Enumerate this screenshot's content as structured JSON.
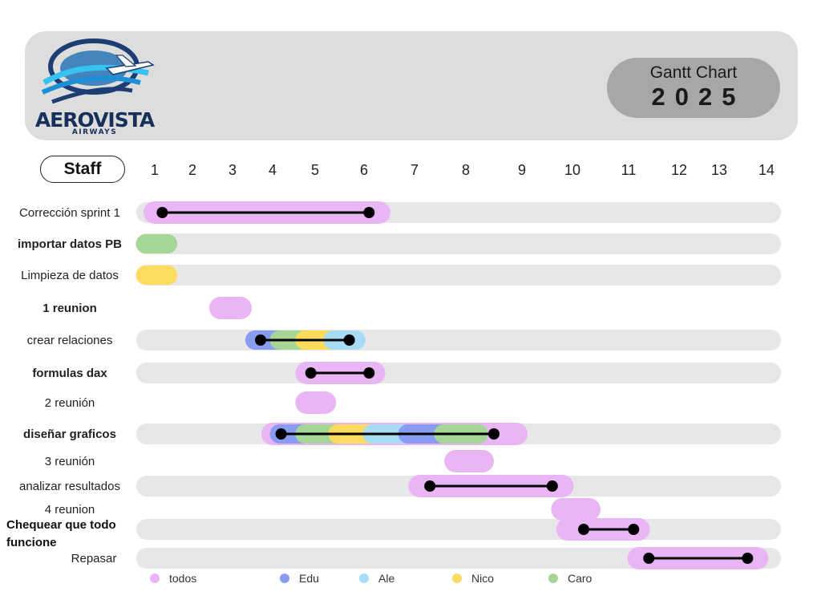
{
  "header": {
    "logo_name": "AEROVISTA",
    "logo_subtitle": "AIRWAYS",
    "title": "Gantt Chart",
    "year": "2025"
  },
  "staff_label": "Staff",
  "chart_data": {
    "type": "gantt",
    "columns": [
      "1",
      "2",
      "3",
      "4",
      "5",
      "6",
      "7",
      "8",
      "9",
      "10",
      "11",
      "12",
      "13",
      "14"
    ],
    "tasks": [
      {
        "name": "Corrección sprint 1",
        "bold": false,
        "segments": [
          {
            "start": 1,
            "end": 3.9,
            "who": "todos"
          },
          {
            "start": 3.9,
            "end": 6.3,
            "who": "todos"
          }
        ],
        "milestones": [
          1.2,
          6.1
        ]
      },
      {
        "name": "importar datos PB",
        "bold": true,
        "segments": [
          {
            "start": 0.8,
            "end": 1.3,
            "who": "Caro"
          }
        ],
        "milestones": []
      },
      {
        "name": "Limpieza de datos",
        "bold": false,
        "segments": [
          {
            "start": 0.8,
            "end": 1.3,
            "who": "Nico"
          }
        ],
        "milestones": []
      },
      {
        "name": "1 reunion",
        "bold": true,
        "segments": [
          {
            "start": 2.7,
            "end": 3.2,
            "who": "todos"
          }
        ],
        "milestones": []
      },
      {
        "name": "crear relaciones",
        "bold": false,
        "segments": [
          {
            "start": 3.6,
            "end": 4.2,
            "who": "Edu"
          },
          {
            "start": 4.2,
            "end": 4.8,
            "who": "Caro"
          },
          {
            "start": 4.8,
            "end": 5.4,
            "who": "Nico"
          },
          {
            "start": 5.4,
            "end": 5.8,
            "who": "Ale"
          }
        ],
        "milestones": [
          3.7,
          5.7
        ]
      },
      {
        "name": "formulas dax",
        "bold": true,
        "segments": [
          {
            "start": 4.8,
            "end": 6.2,
            "who": "todos"
          }
        ],
        "milestones": [
          4.9,
          6.1
        ]
      },
      {
        "name": "2 reunión",
        "bold": false,
        "segments": [
          {
            "start": 4.8,
            "end": 5.2,
            "who": "todos"
          }
        ],
        "milestones": []
      },
      {
        "name": "diseñar graficos",
        "bold": true,
        "segments": [
          {
            "start": 4.0,
            "end": 8.9,
            "who": "todos"
          },
          {
            "start": 4.2,
            "end": 4.7,
            "who": "Edu"
          },
          {
            "start": 4.8,
            "end": 5.4,
            "who": "Caro"
          },
          {
            "start": 5.5,
            "end": 6.1,
            "who": "Nico"
          },
          {
            "start": 6.2,
            "end": 6.8,
            "who": "Ale"
          },
          {
            "start": 6.9,
            "end": 7.5,
            "who": "Edu"
          },
          {
            "start": 7.6,
            "end": 8.2,
            "who": "Caro"
          }
        ],
        "milestones": [
          4.2,
          8.5
        ]
      },
      {
        "name": "3 reunión",
        "bold": false,
        "segments": [
          {
            "start": 7.8,
            "end": 8.3,
            "who": "todos"
          }
        ],
        "milestones": []
      },
      {
        "name": "analizar resultados",
        "bold": false,
        "segments": [
          {
            "start": 7.1,
            "end": 9.8,
            "who": "todos"
          }
        ],
        "milestones": [
          7.3,
          9.6
        ]
      },
      {
        "name": "4 reunion",
        "bold": false,
        "segments": [
          {
            "start": 9.8,
            "end": 10.3,
            "who": "todos"
          }
        ],
        "milestones": []
      },
      {
        "name": "Chequear que todo funcione",
        "bold": true,
        "segments": [
          {
            "start": 9.9,
            "end": 11.2,
            "who": "todos"
          }
        ],
        "milestones": [
          10.2,
          11.1
        ]
      },
      {
        "name": "Repasar",
        "bold": false,
        "segments": [
          {
            "start": 11.2,
            "end": 13.8,
            "who": "todos"
          }
        ],
        "milestones": [
          11.4,
          13.6
        ]
      }
    ],
    "legend": [
      {
        "name": "todos",
        "color": "#eab5f5"
      },
      {
        "name": "Edu",
        "color": "#8a9bf2"
      },
      {
        "name": "Ale",
        "color": "#a8dcf6"
      },
      {
        "name": "Nico",
        "color": "#fcdc5c"
      },
      {
        "name": "Caro",
        "color": "#a6d696"
      }
    ]
  }
}
